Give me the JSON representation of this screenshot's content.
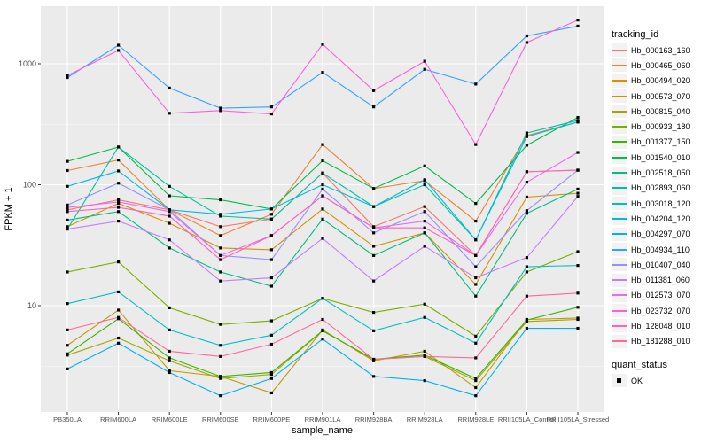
{
  "legend": {
    "tracking_title": "tracking_id",
    "quant_title": "quant_status",
    "quant_ok_label": "OK"
  },
  "chart_data": {
    "type": "line",
    "title": "",
    "xlabel": "sample_name",
    "ylabel": "FPKM + 1",
    "y_scale": "log10",
    "y_ticks": [
      10,
      100,
      1000
    ],
    "y_tick_labels": [
      "10",
      "100",
      "1000"
    ],
    "ylim": [
      1.3,
      3000
    ],
    "grid": "white-on-grey",
    "legend_position": "right",
    "panel_background": "#EBEBEB",
    "gridline_color": "#FFFFFF",
    "axis_text_color": "#4D4D4D",
    "point_color": "#000000",
    "point_shape": "square",
    "categories": [
      "PB350LA",
      "RRIM600LA",
      "RRIM600LE",
      "RRIM600SE",
      "RRIM600PE",
      "RRIM901LA",
      "RRIM928BA",
      "RRIM928LA",
      "RRIM928LE",
      "RRII105LA_Control",
      "RRII105LA_Stressed"
    ],
    "series": [
      {
        "name": "Hb_000163_160",
        "color": "#F8766D",
        "values": [
          62,
          75,
          62,
          45,
          52,
          125,
          45,
          66,
          26,
          128,
          132
        ]
      },
      {
        "name": "Hb_000465_060",
        "color": "#EA8331",
        "values": [
          131,
          160,
          62,
          38,
          57,
          215,
          93,
          108,
          50,
          255,
          330
        ]
      },
      {
        "name": "Hb_000494_020",
        "color": "#D89000",
        "values": [
          45,
          70,
          48,
          30,
          29,
          63,
          31,
          40,
          15,
          79,
          85
        ]
      },
      {
        "name": "Hb_000573_070",
        "color": "#C09B00",
        "values": [
          4.7,
          9.2,
          2.9,
          2.6,
          1.9,
          6.3,
          3.5,
          4.2,
          2.1,
          7.7,
          7.9
        ]
      },
      {
        "name": "Hb_000815_040",
        "color": "#A3A500",
        "values": [
          3.9,
          5.4,
          3.5,
          2.5,
          2.7,
          6.2,
          3.6,
          3.8,
          2.4,
          7.4,
          7.7
        ]
      },
      {
        "name": "Hb_000933_180",
        "color": "#7CAE00",
        "values": [
          19,
          23,
          9.6,
          7.0,
          7.5,
          11.5,
          8.8,
          10.3,
          5.6,
          19,
          28
        ]
      },
      {
        "name": "Hb_001377_150",
        "color": "#39B600",
        "values": [
          4.0,
          7.8,
          3.7,
          2.6,
          2.8,
          6.2,
          3.6,
          3.9,
          2.5,
          7.6,
          9.7
        ]
      },
      {
        "name": "Hb_001540_010",
        "color": "#00BB4E",
        "values": [
          156,
          205,
          81,
          75,
          63,
          158,
          93,
          143,
          70,
          212,
          360
        ]
      },
      {
        "name": "Hb_002518_050",
        "color": "#00BF7D",
        "values": [
          51,
          60,
          30,
          19,
          14.5,
          52,
          26,
          40,
          12,
          58,
          92
        ]
      },
      {
        "name": "Hb_002893_060",
        "color": "#00C1A3",
        "values": [
          43,
          205,
          97,
          55,
          52,
          125,
          66,
          100,
          35,
          268,
          340
        ]
      },
      {
        "name": "Hb_003018_120",
        "color": "#00BFC4",
        "values": [
          10.4,
          13,
          6.3,
          4.7,
          5.7,
          11.5,
          6.2,
          8,
          4.9,
          21,
          21.5
        ]
      },
      {
        "name": "Hb_004204_120",
        "color": "#00BAE0",
        "values": [
          97,
          130,
          62,
          57,
          63,
          100,
          66,
          110,
          35,
          250,
          330
        ]
      },
      {
        "name": "Hb_004297_070",
        "color": "#00B0F6",
        "values": [
          3.0,
          4.9,
          2.8,
          1.8,
          2.5,
          5.3,
          2.6,
          2.4,
          1.8,
          6.5,
          6.5
        ]
      },
      {
        "name": "Hb_004934_110",
        "color": "#35A2FF",
        "values": [
          770,
          1425,
          630,
          430,
          440,
          850,
          440,
          900,
          680,
          1700,
          2050
        ]
      },
      {
        "name": "Hb_010407_040",
        "color": "#9590FF",
        "values": [
          68,
          103,
          62,
          26,
          24,
          92,
          40,
          60,
          21,
          61,
          132
        ]
      },
      {
        "name": "Hb_011381_060",
        "color": "#C77CFF",
        "values": [
          43,
          50,
          35,
          16,
          17,
          36,
          16,
          31,
          17,
          25,
          80
        ]
      },
      {
        "name": "Hb_012573_070",
        "color": "#E76BF3",
        "values": [
          65,
          72,
          60,
          26,
          38,
          81,
          44,
          50,
          26,
          105,
          185
        ]
      },
      {
        "name": "Hb_023732_070",
        "color": "#FA62DB",
        "values": [
          800,
          1290,
          390,
          410,
          385,
          1450,
          600,
          1050,
          215,
          1500,
          2300
        ]
      },
      {
        "name": "Hb_128048_010",
        "color": "#FF62BC",
        "values": [
          60,
          65,
          55,
          24,
          38,
          81,
          44,
          44,
          26,
          128,
          132
        ]
      },
      {
        "name": "Hb_181288_010",
        "color": "#FF6A98",
        "values": [
          6.3,
          8.0,
          4.2,
          3.8,
          4.8,
          7.7,
          3.6,
          3.8,
          3.7,
          12,
          12.7
        ]
      }
    ]
  }
}
